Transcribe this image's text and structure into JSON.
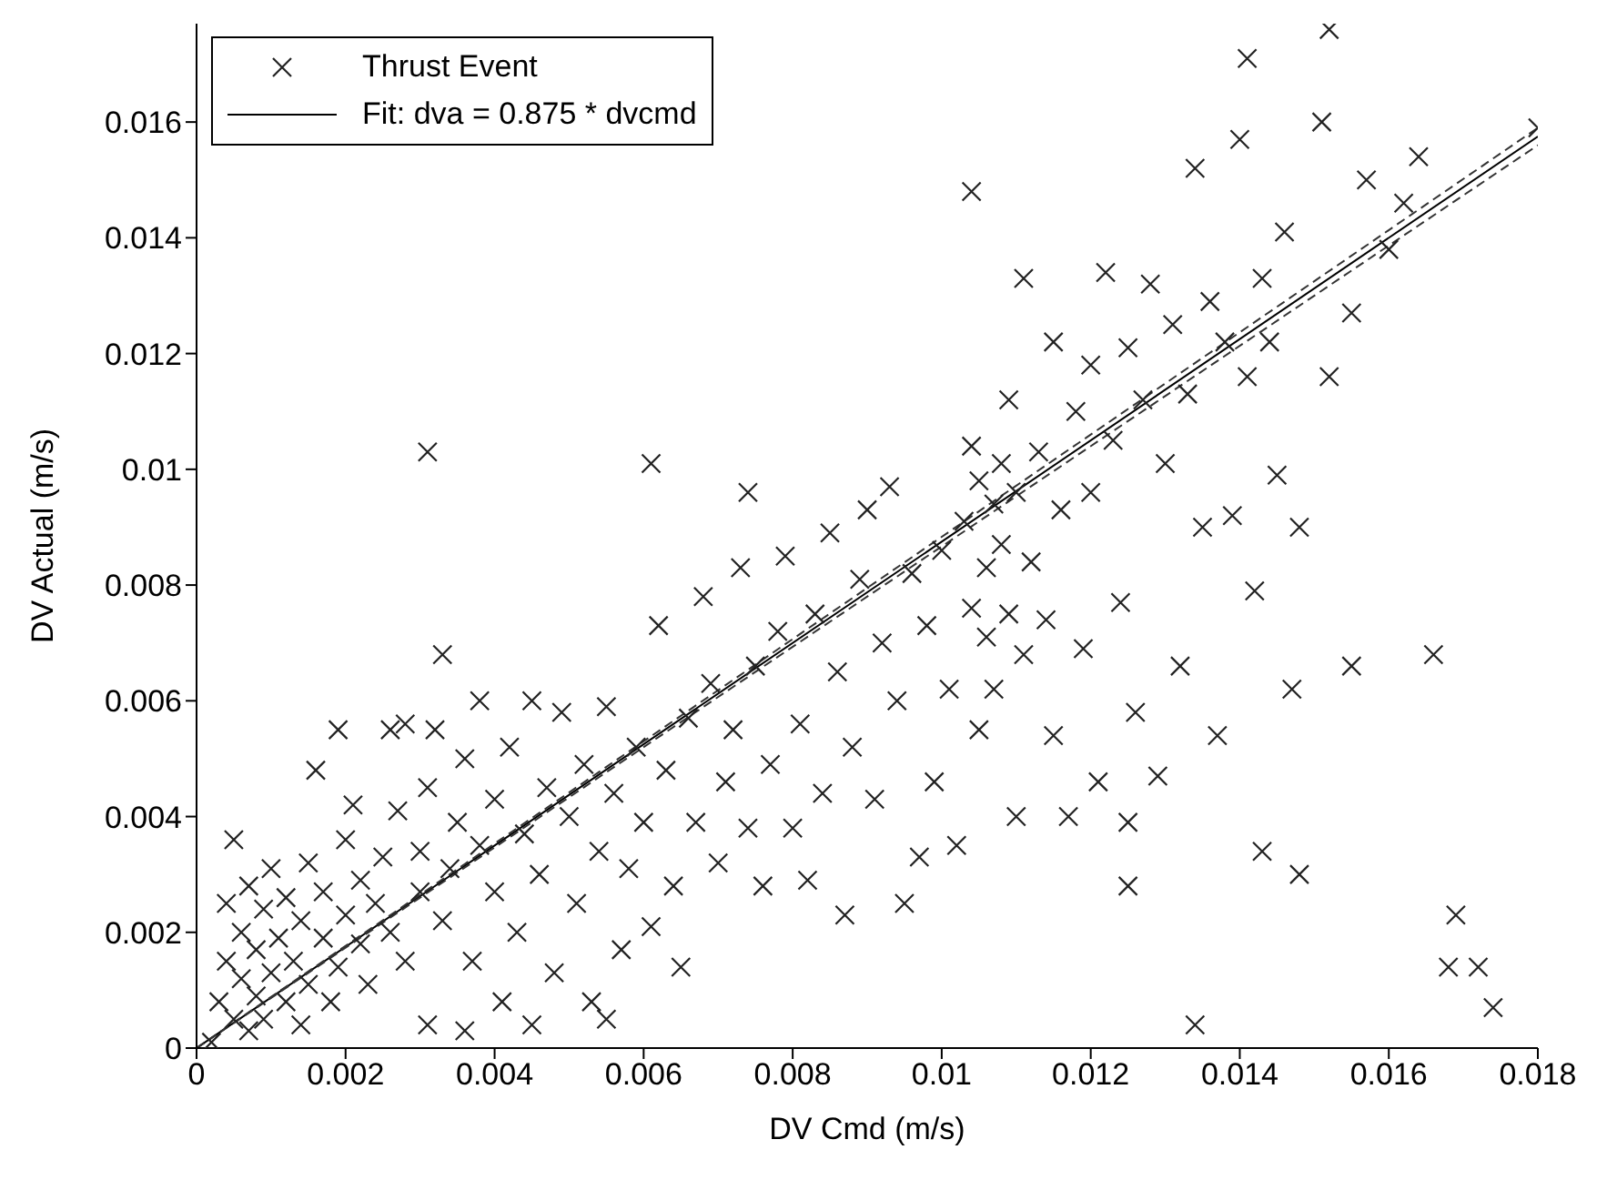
{
  "chart_data": {
    "type": "scatter",
    "xlabel": "DV Cmd (m/s)",
    "ylabel": "DV Actual (m/s)",
    "xlim": [
      0,
      0.018
    ],
    "xticks": [
      0,
      0.002,
      0.004,
      0.006,
      0.008,
      0.01,
      0.012,
      0.014,
      0.016,
      0.018
    ],
    "ylim": [
      0,
      0.0177
    ],
    "yticks": [
      0,
      0.002,
      0.004,
      0.006,
      0.008,
      0.01,
      0.012,
      0.014,
      0.016
    ],
    "grid": false,
    "legend": "top left",
    "series": [
      {
        "name": "Thrust Event",
        "marker": "cross",
        "color": "#222222",
        "x": [
          0.0002,
          0.0003,
          0.0004,
          0.0004,
          0.0005,
          0.0005,
          0.0006,
          0.0006,
          0.0007,
          0.0007,
          0.0008,
          0.0008,
          0.0009,
          0.0009,
          0.001,
          0.001,
          0.0011,
          0.0012,
          0.0012,
          0.0013,
          0.0014,
          0.0014,
          0.0015,
          0.0015,
          0.0016,
          0.0017,
          0.0017,
          0.0018,
          0.0019,
          0.0019,
          0.002,
          0.002,
          0.0021,
          0.0022,
          0.0022,
          0.0023,
          0.0024,
          0.0025,
          0.0026,
          0.0026,
          0.0027,
          0.0028,
          0.0028,
          0.003,
          0.003,
          0.0031,
          0.0031,
          0.0032,
          0.0033,
          0.0034,
          0.0035,
          0.0036,
          0.0036,
          0.0037,
          0.0038,
          0.0038,
          0.004,
          0.004,
          0.0041,
          0.0042,
          0.0043,
          0.0044,
          0.0045,
          0.0045,
          0.0046,
          0.0047,
          0.0048,
          0.0049,
          0.005,
          0.0051,
          0.0052,
          0.0053,
          0.0054,
          0.0055,
          0.0055,
          0.0056,
          0.0057,
          0.0058,
          0.0059,
          0.006,
          0.0061,
          0.0062,
          0.0063,
          0.0064,
          0.0065,
          0.0066,
          0.0067,
          0.0068,
          0.0069,
          0.007,
          0.0071,
          0.0072,
          0.0073,
          0.0074,
          0.0075,
          0.0076,
          0.0077,
          0.0078,
          0.0079,
          0.008,
          0.0081,
          0.0082,
          0.0083,
          0.0084,
          0.0085,
          0.0086,
          0.0087,
          0.0088,
          0.0089,
          0.009,
          0.0091,
          0.0092,
          0.0093,
          0.0094,
          0.0096,
          0.0097,
          0.0098,
          0.0099,
          0.01,
          0.0101,
          0.0102,
          0.0103,
          0.0104,
          0.0104,
          0.0105,
          0.0105,
          0.0106,
          0.0106,
          0.0107,
          0.0107,
          0.0108,
          0.0108,
          0.0109,
          0.0109,
          0.011,
          0.011,
          0.0111,
          0.0111,
          0.0112,
          0.0113,
          0.0114,
          0.0115,
          0.0115,
          0.0116,
          0.0117,
          0.0118,
          0.0119,
          0.012,
          0.012,
          0.0121,
          0.0122,
          0.0123,
          0.0124,
          0.0125,
          0.0126,
          0.0127,
          0.0128,
          0.0129,
          0.013,
          0.0131,
          0.0132,
          0.0133,
          0.0134,
          0.0135,
          0.0136,
          0.0137,
          0.0138,
          0.0139,
          0.014,
          0.0141,
          0.0142,
          0.0143,
          0.0144,
          0.0145,
          0.0146,
          0.0147,
          0.0148,
          0.0151,
          0.0152,
          0.0155,
          0.0157,
          0.016,
          0.0162,
          0.0164,
          0.0031,
          0.0061,
          0.0074,
          0.0033,
          0.0095,
          0.0134,
          0.0141,
          0.0152,
          0.0174,
          0.0172,
          0.0168,
          0.0169,
          0.0166,
          0.0155,
          0.0148,
          0.0143,
          0.0125,
          0.0125,
          0.0104,
          0.018
        ],
        "values": [
          0.0001,
          0.0008,
          0.0015,
          0.0025,
          0.0005,
          0.0036,
          0.0012,
          0.002,
          0.0003,
          0.0028,
          0.0009,
          0.0017,
          0.0024,
          0.0005,
          0.0013,
          0.0031,
          0.0019,
          0.0008,
          0.0026,
          0.0015,
          0.0022,
          0.0004,
          0.0011,
          0.0032,
          0.0048,
          0.0019,
          0.0027,
          0.0008,
          0.0014,
          0.0055,
          0.0023,
          0.0036,
          0.0042,
          0.0018,
          0.0029,
          0.0011,
          0.0025,
          0.0033,
          0.0055,
          0.002,
          0.0041,
          0.0015,
          0.0056,
          0.0027,
          0.0034,
          0.0045,
          0.0004,
          0.0055,
          0.0022,
          0.0031,
          0.0039,
          0.0003,
          0.005,
          0.0015,
          0.0035,
          0.006,
          0.0027,
          0.0043,
          0.0008,
          0.0052,
          0.002,
          0.0037,
          0.0004,
          0.006,
          0.003,
          0.0045,
          0.0013,
          0.0058,
          0.004,
          0.0025,
          0.0049,
          0.0008,
          0.0034,
          0.0005,
          0.0059,
          0.0044,
          0.0017,
          0.0031,
          0.0052,
          0.0039,
          0.0021,
          0.0073,
          0.0048,
          0.0028,
          0.0014,
          0.0057,
          0.0039,
          0.0078,
          0.0063,
          0.0032,
          0.0046,
          0.0055,
          0.0083,
          0.0038,
          0.0066,
          0.0028,
          0.0049,
          0.0072,
          0.0085,
          0.0038,
          0.0056,
          0.0029,
          0.0075,
          0.0044,
          0.0089,
          0.0065,
          0.0023,
          0.0052,
          0.0081,
          0.0093,
          0.0043,
          0.007,
          0.0097,
          0.006,
          0.0082,
          0.0033,
          0.0073,
          0.0046,
          0.0086,
          0.0062,
          0.0035,
          0.0091,
          0.0076,
          0.0104,
          0.0055,
          0.0098,
          0.0083,
          0.0071,
          0.0094,
          0.0062,
          0.0101,
          0.0087,
          0.0075,
          0.0112,
          0.0096,
          0.004,
          0.0068,
          0.0133,
          0.0084,
          0.0103,
          0.0074,
          0.0122,
          0.0054,
          0.0093,
          0.004,
          0.011,
          0.0069,
          0.0118,
          0.0096,
          0.0046,
          0.0134,
          0.0105,
          0.0077,
          0.0121,
          0.0058,
          0.0112,
          0.0132,
          0.0047,
          0.0101,
          0.0125,
          0.0066,
          0.0113,
          0.0152,
          0.009,
          0.0129,
          0.0054,
          0.0122,
          0.0092,
          0.0157,
          0.0116,
          0.0079,
          0.0133,
          0.0122,
          0.0099,
          0.0141,
          0.0062,
          0.009,
          0.016,
          0.0116,
          0.0127,
          0.015,
          0.0138,
          0.0146,
          0.0154,
          0.0103,
          0.0101,
          0.0096,
          0.0068,
          0.0025,
          0.0004,
          0.0171,
          0.0176,
          0.0007,
          0.0014,
          0.0014,
          0.0023,
          0.0068,
          0.0066,
          0.003,
          0.0034,
          0.0028,
          0.0039,
          0.0148,
          0.0159
        ]
      },
      {
        "name": "Fit: dva = 0.875 * dvcmd",
        "type": "line",
        "marker": "none",
        "line_style": "solid",
        "color": "#000000",
        "x": [
          0,
          0.018
        ],
        "values": [
          0,
          0.01575
        ]
      },
      {
        "type": "line",
        "marker": "none",
        "line_style": "dashed",
        "color": "#333333",
        "x": [
          0,
          0.018
        ],
        "values": [
          0,
          0.0156
        ]
      },
      {
        "type": "line",
        "marker": "none",
        "line_style": "dashed",
        "color": "#333333",
        "x": [
          0,
          0.018
        ],
        "values": [
          0,
          0.0159
        ]
      }
    ]
  }
}
